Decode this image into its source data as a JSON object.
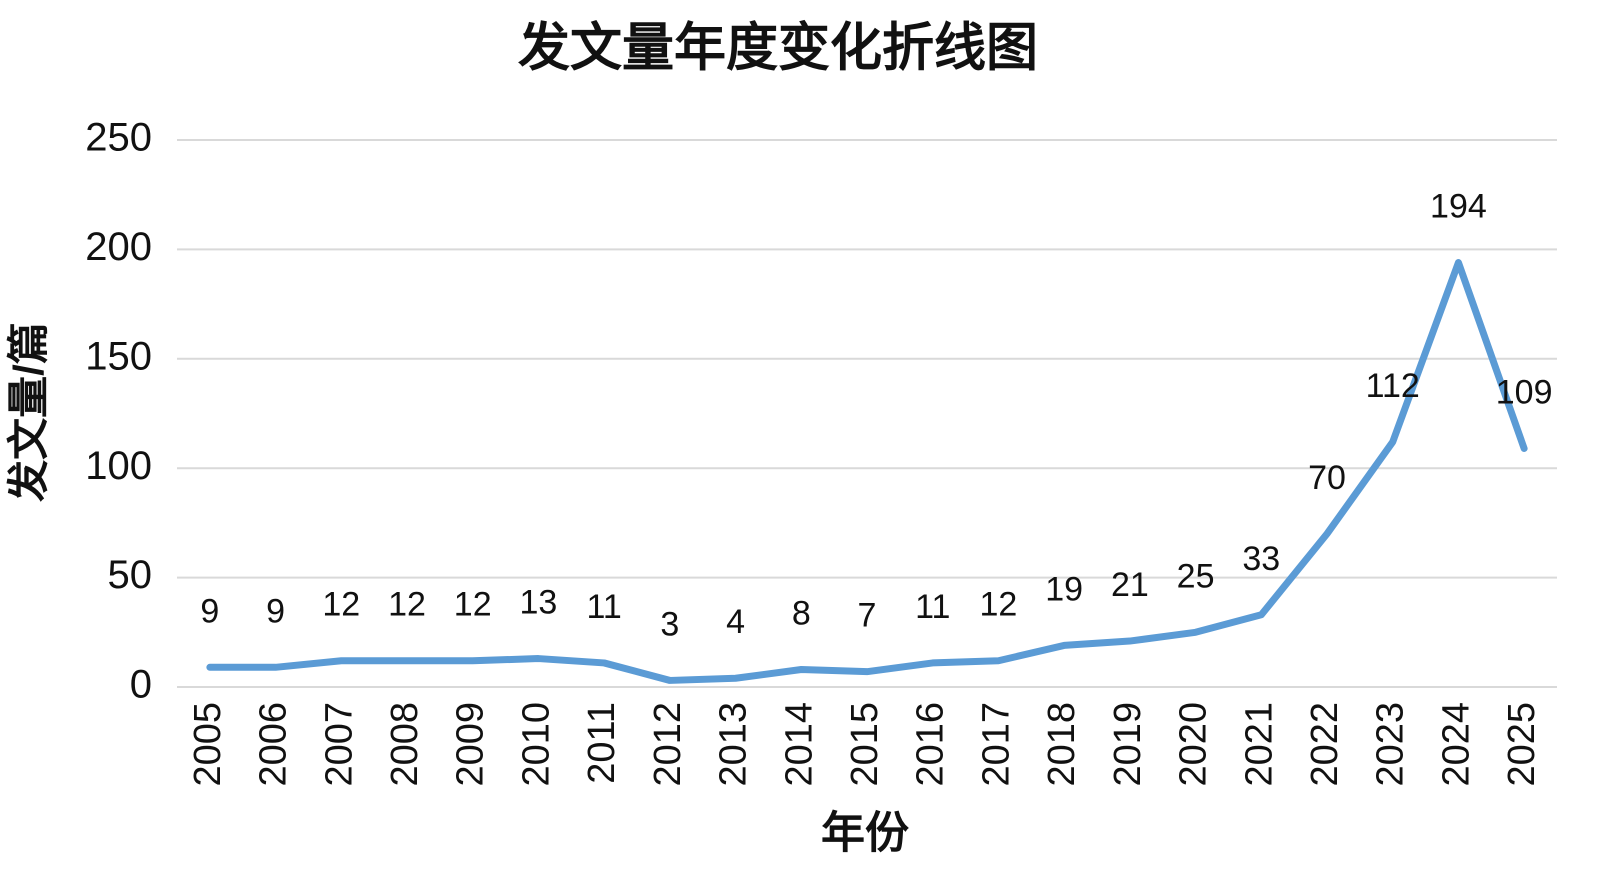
{
  "chart_data": {
    "type": "line",
    "title": "发文量年度变化折线图",
    "x_label": "年份",
    "y_label": "发文量/篇",
    "categories": [
      "2005",
      "2006",
      "2007",
      "2008",
      "2009",
      "2010",
      "2011",
      "2012",
      "2013",
      "2014",
      "2015",
      "2016",
      "2017",
      "2018",
      "2019",
      "2020",
      "2021",
      "2022",
      "2023",
      "2024",
      "2025"
    ],
    "values": [
      9,
      9,
      12,
      12,
      12,
      13,
      11,
      3,
      4,
      8,
      7,
      11,
      12,
      19,
      21,
      25,
      33,
      70,
      112,
      194,
      109
    ],
    "color": "#5b9bd5",
    "ylim": [
      0,
      250
    ],
    "yticks": [
      0,
      50,
      100,
      150,
      200,
      250
    ],
    "grid": true
  }
}
